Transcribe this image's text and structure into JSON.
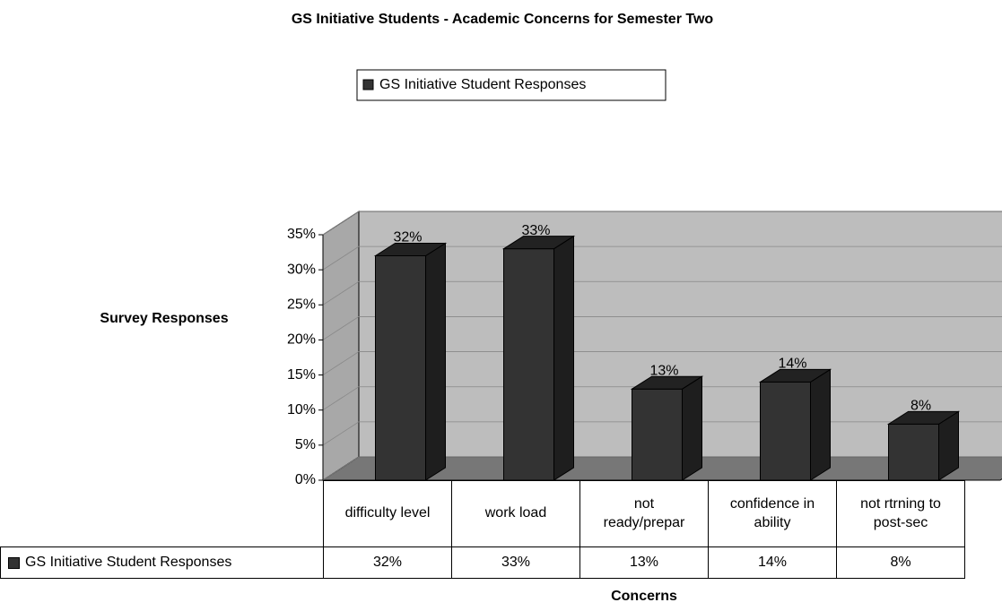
{
  "chart_data": {
    "type": "bar3d",
    "title": "GS Initiative Students - Academic Concerns for Semester Two",
    "y_label": "Survey Responses",
    "x_label": "Concerns",
    "categories": [
      "difficulty level",
      "work load",
      "not ready/prepar",
      "confidence in ability",
      "not rtrning to post-sec"
    ],
    "series": [
      {
        "name": "GS Initiative Student Responses",
        "color": "#333333",
        "values": [
          32,
          33,
          13,
          14,
          8
        ],
        "value_labels": [
          "32%",
          "33%",
          "13%",
          "14%",
          "8%"
        ]
      }
    ],
    "ylim": [
      0,
      35
    ],
    "yticks": [
      {
        "value": 0,
        "label": "0%"
      },
      {
        "value": 5,
        "label": "5%"
      },
      {
        "value": 10,
        "label": "10%"
      },
      {
        "value": 15,
        "label": "15%"
      },
      {
        "value": 20,
        "label": "20%"
      },
      {
        "value": 25,
        "label": "25%"
      },
      {
        "value": 30,
        "label": "30%"
      },
      {
        "value": 35,
        "label": "35%"
      }
    ],
    "grid": true,
    "legend": "top"
  }
}
